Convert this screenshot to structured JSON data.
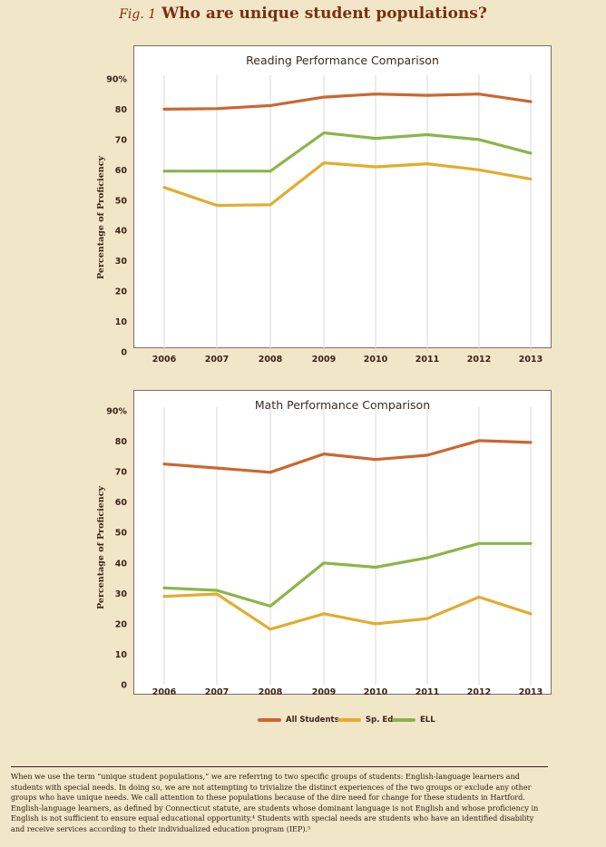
{
  "figure": {
    "label": "Fig. 1",
    "title": "Who are unique student populations?"
  },
  "colors": {
    "all_students": "#cc6630",
    "sp_ed": "#e2ac2e",
    "ell": "#8bb54a",
    "grid": "#d8d8d8"
  },
  "legend": [
    {
      "key": "all_students",
      "label": "All Students"
    },
    {
      "key": "sp_ed",
      "label": "Sp. Ed"
    },
    {
      "key": "ell",
      "label": "ELL"
    }
  ],
  "chart_data": [
    {
      "type": "line",
      "title": "Reading Performance Comparison",
      "ylabel": "Percentage of Proficiency",
      "ylim": [
        0,
        90
      ],
      "yticks": [
        "0",
        "10",
        "20",
        "30",
        "40",
        "50",
        "60",
        "70",
        "80",
        "90%"
      ],
      "categories": [
        "2006",
        "2007",
        "2008",
        "2009",
        "2010",
        "2011",
        "2012",
        "2013"
      ],
      "grid": "vertical",
      "series": [
        {
          "key": "all_students",
          "name": "All Students",
          "values": [
            80,
            80.2,
            81.2,
            84,
            85,
            84.6,
            85,
            82.5
          ]
        },
        {
          "key": "sp_ed",
          "name": "Sp. Ed",
          "values": [
            54.2,
            48.3,
            48.5,
            62.3,
            61,
            62,
            60,
            57
          ]
        },
        {
          "key": "ell",
          "name": "ELL",
          "values": [
            59.6,
            59.6,
            59.6,
            72.2,
            70.4,
            71.6,
            70,
            65.5
          ]
        }
      ]
    },
    {
      "type": "line",
      "title": "Math Performance Comparison",
      "ylabel": "Percentage of Proficiency",
      "ylim": [
        0,
        90
      ],
      "yticks": [
        "0",
        "10",
        "20",
        "30",
        "40",
        "50",
        "60",
        "70",
        "80",
        "90%"
      ],
      "categories": [
        "2006",
        "2007",
        "2008",
        "2009",
        "2010",
        "2011",
        "2012",
        "2013"
      ],
      "grid": "vertical",
      "series": [
        {
          "key": "all_students",
          "name": "All Students",
          "values": [
            72.5,
            71.2,
            69.8,
            75.8,
            74,
            75.4,
            80.2,
            79.6
          ]
        },
        {
          "key": "sp_ed",
          "name": "Sp. Ed",
          "values": [
            29,
            29.8,
            18.2,
            23.3,
            20,
            21.7,
            28.8,
            23.3
          ]
        },
        {
          "key": "ell",
          "name": "ELL",
          "values": [
            31.8,
            31,
            25.8,
            40,
            38.6,
            41.7,
            46.4,
            46.4
          ]
        }
      ]
    }
  ],
  "footnote": "When we use the term “unique student populations,” we are referring to two specific groups of students: English-language learners and students with special needs. In doing so, we are not attempting to trivialize the distinct experiences of the two groups or exclude any other groups who have unique needs. We call attention to these populations because of the dire need for change for these students in Hartford. English-language learners, as defined by Connecticut statute, are students whose dominant language is not English and whose proficiency in English is not sufficient to ensure equal educational opportunity.⁴ Students with special needs are students who have an identified disability and receive services according to their individualized education program (IEP).⁵"
}
